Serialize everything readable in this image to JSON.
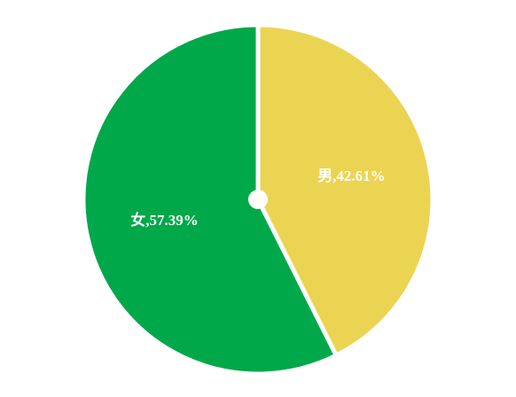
{
  "chart_data": {
    "type": "pie",
    "values": [
      42.61,
      57.39
    ],
    "value_labels": [
      "男,42.61%",
      "女,57.39%"
    ],
    "colors": [
      "#ecd453",
      "#00a84a"
    ]
  }
}
